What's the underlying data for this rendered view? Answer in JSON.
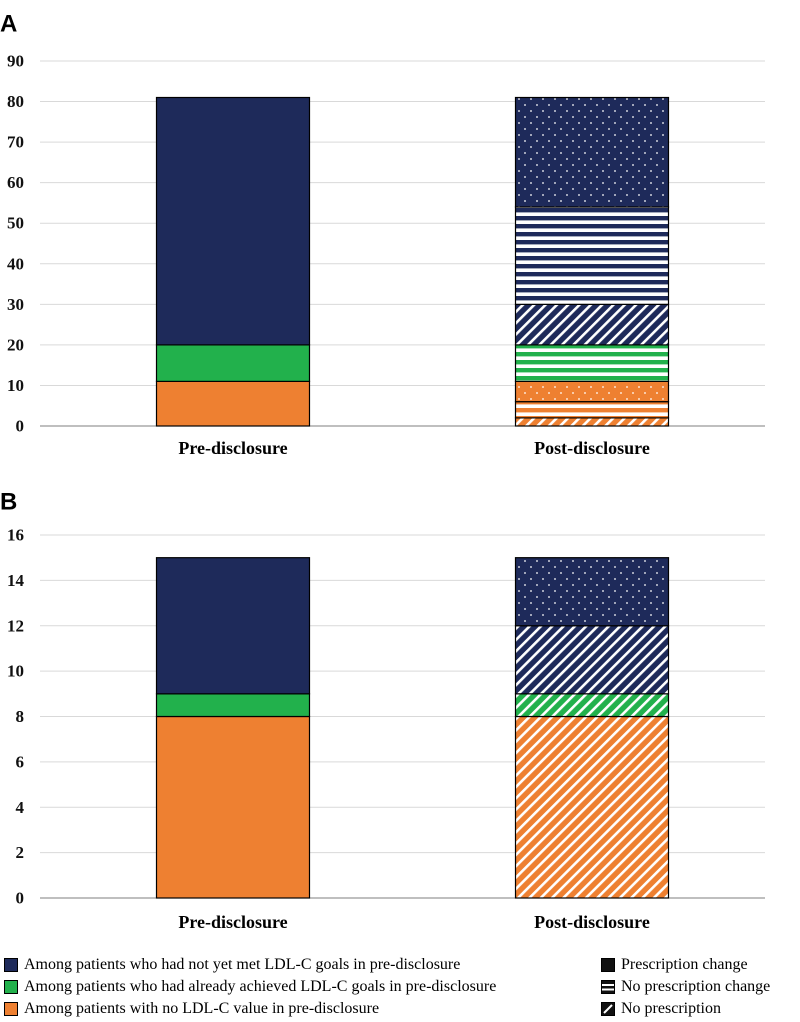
{
  "colors": {
    "navy": "#1e2a5a",
    "green": "#22b14c",
    "orange": "#ee8031",
    "grid": "#d9d9d9",
    "axis": "#7f7f7f"
  },
  "chart_data": [
    {
      "type": "bar",
      "stacked": true,
      "panel_label": "A",
      "ylim": [
        0,
        90
      ],
      "yticks": [
        "0",
        "10",
        "20",
        "30",
        "40",
        "50",
        "60",
        "70",
        "80",
        "90"
      ],
      "categories": [
        "Pre-disclosure",
        "Post-disclosure"
      ],
      "bars": [
        [
          {
            "series": "no_ldl",
            "status": "solid",
            "value": 11
          },
          {
            "series": "achieved",
            "status": "solid",
            "value": 9
          },
          {
            "series": "not_met",
            "status": "solid",
            "value": 61
          }
        ],
        [
          {
            "series": "no_ldl",
            "status": "no_prescription",
            "value": 2
          },
          {
            "series": "no_ldl",
            "status": "no_change",
            "value": 4
          },
          {
            "series": "no_ldl",
            "status": "prescription_change",
            "value": 5
          },
          {
            "series": "achieved",
            "status": "no_change",
            "value": 9
          },
          {
            "series": "not_met",
            "status": "no_prescription",
            "value": 10
          },
          {
            "series": "not_met",
            "status": "no_change",
            "value": 24
          },
          {
            "series": "not_met",
            "status": "prescription_change",
            "value": 27
          }
        ]
      ]
    },
    {
      "type": "bar",
      "stacked": true,
      "panel_label": "B",
      "ylim": [
        0,
        16
      ],
      "yticks": [
        "0",
        "2",
        "4",
        "6",
        "8",
        "10",
        "12",
        "14",
        "16"
      ],
      "categories": [
        "Pre-disclosure",
        "Post-disclosure"
      ],
      "bars": [
        [
          {
            "series": "no_ldl",
            "status": "solid",
            "value": 8
          },
          {
            "series": "achieved",
            "status": "solid",
            "value": 1
          },
          {
            "series": "not_met",
            "status": "solid",
            "value": 6
          }
        ],
        [
          {
            "series": "no_ldl",
            "status": "no_prescription",
            "value": 8
          },
          {
            "series": "achieved",
            "status": "no_prescription",
            "value": 1
          },
          {
            "series": "not_met",
            "status": "no_prescription",
            "value": 3
          },
          {
            "series": "not_met",
            "status": "prescription_change",
            "value": 3
          }
        ]
      ]
    }
  ],
  "legend": {
    "groups": [
      {
        "key": "not_met",
        "label": "Among patients who had not yet met LDL-C goals in pre-disclosure"
      },
      {
        "key": "achieved",
        "label": "Among patients who had already achieved LDL-C goals in pre-disclosure"
      },
      {
        "key": "no_ldl",
        "label": "Among patients with no LDL-C value in pre-disclosure"
      }
    ],
    "statuses": [
      {
        "key": "prescription_change",
        "label": "Prescription change"
      },
      {
        "key": "no_change",
        "label": "No prescription change"
      },
      {
        "key": "no_prescription",
        "label": "No prescription"
      }
    ]
  }
}
